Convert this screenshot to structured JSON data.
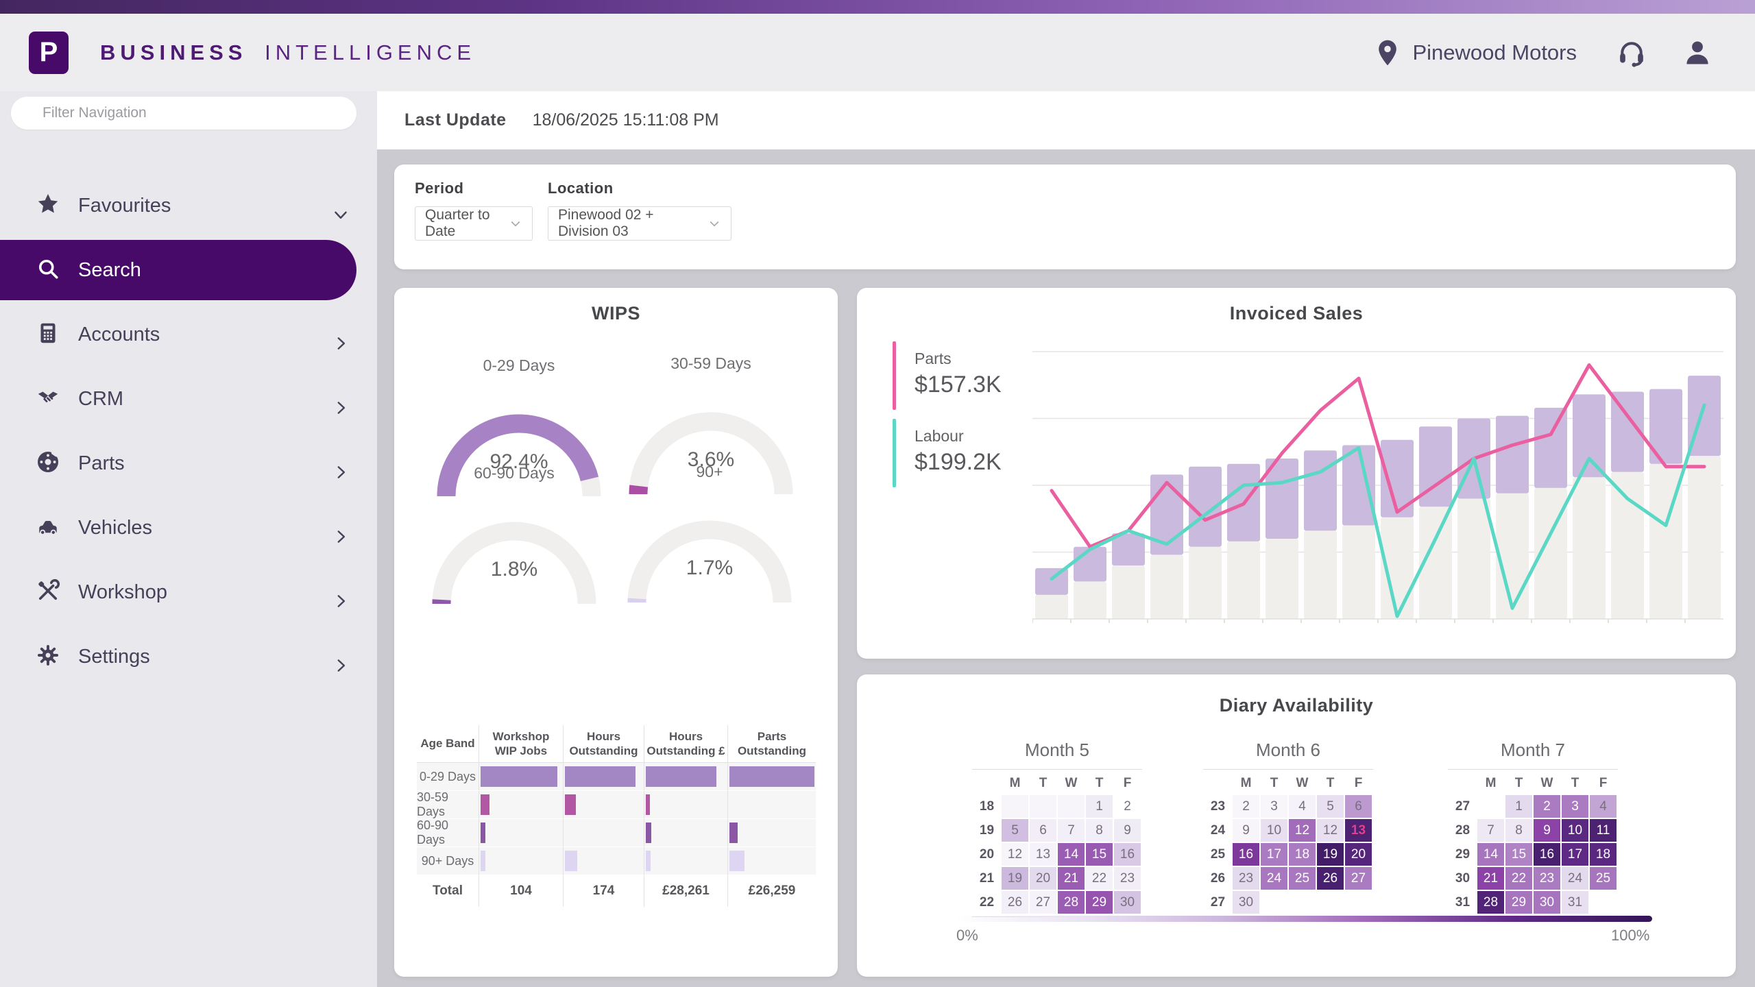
{
  "colors": {
    "brand_purple": "#470a68",
    "sidebar_text": "#474059",
    "page_bg": "#cbcad0",
    "pink": "#ea5f9f",
    "teal": "#5bd7c5",
    "bar_purple": "#cabadd",
    "bar_gray": "#f1efec",
    "gauge_track": "#f1efed",
    "calendar_dark": "#331557"
  },
  "header": {
    "logo_letter": "P",
    "brand_bold": "BUSINESS",
    "brand_light": "INTELLIGENCE",
    "dealer": "Pinewood Motors"
  },
  "sidebar": {
    "filter_placeholder": "Filter Navigation",
    "items": [
      {
        "label": "Favourites",
        "icon": "star",
        "chevron": "down",
        "active": false
      },
      {
        "label": "Search",
        "icon": "search",
        "chevron": "none",
        "active": true
      },
      {
        "label": "Accounts",
        "icon": "calculator",
        "chevron": "right",
        "active": false
      },
      {
        "label": "CRM",
        "icon": "handshake",
        "chevron": "right",
        "active": false
      },
      {
        "label": "Parts",
        "icon": "brake-disc",
        "chevron": "right",
        "active": false
      },
      {
        "label": "Vehicles",
        "icon": "car",
        "chevron": "right",
        "active": false
      },
      {
        "label": "Workshop",
        "icon": "tools",
        "chevron": "right",
        "active": false
      },
      {
        "label": "Settings",
        "icon": "gear",
        "chevron": "right",
        "active": false
      }
    ]
  },
  "status": {
    "label": "Last Update",
    "value": "18/06/2025 15:11:08 PM"
  },
  "filters": {
    "period": {
      "label": "Period",
      "value": "Quarter to Date"
    },
    "location": {
      "label": "Location",
      "value": "Pinewood 02 + Division 03"
    }
  },
  "wips": {
    "title": "WIPS",
    "gauges": [
      {
        "label": "0-29 Days",
        "display": "92.4%",
        "value": 92.4,
        "color": "#a782c5"
      },
      {
        "label": "30-59 Days",
        "display": "3.6%",
        "value": 3.6,
        "color": "#ab4fa5"
      },
      {
        "label": "60-90 Days",
        "display": "1.8%",
        "value": 1.8,
        "color": "#8f57ac"
      },
      {
        "label": "90+",
        "display": "1.7%",
        "value": 1.7,
        "color": "#d9d0f0"
      }
    ],
    "table": {
      "headers": [
        [
          "Age Band"
        ],
        [
          "Workshop",
          "WIP Jobs"
        ],
        [
          "Hours",
          "Outstanding"
        ],
        [
          "Hours",
          "Outstanding £"
        ],
        [
          "Parts",
          "Outstanding"
        ]
      ],
      "rows": [
        {
          "label": "0-29 Days",
          "color": "#a287c4",
          "bars": [
            92,
            88,
            85,
            97
          ]
        },
        {
          "label": "30-59 Days",
          "color": "#b157a3",
          "bars": [
            11,
            14,
            5,
            0
          ]
        },
        {
          "label": "60-90 Days",
          "color": "#8b57a5",
          "bars": [
            6,
            0,
            7,
            9
          ]
        },
        {
          "label": "90+ Days",
          "color": "#ded5f3",
          "bars": [
            6,
            15,
            6,
            17
          ]
        }
      ],
      "total": {
        "label": "Total",
        "values": [
          "104",
          "174",
          "£28,261",
          "£26,259"
        ]
      }
    }
  },
  "invoiced_sales": {
    "title": "Invoiced Sales",
    "legend": [
      {
        "name": "Parts",
        "value": "$157.3K",
        "color": "#ea5f9f"
      },
      {
        "name": "Labour",
        "value": "$199.2K",
        "color": "#5bd7c5"
      }
    ],
    "chart_data": {
      "type": "combo-bar-line",
      "x_count": 18,
      "axis_note": "no visible axis or tick labels; values are fractions of plot height (top gridline = 1.0)",
      "gridlines": 4,
      "bar_top_color": "#cabadd",
      "bar_base_color": "#f1efec",
      "bars_total": [
        0.19,
        0.27,
        0.32,
        0.54,
        0.57,
        0.58,
        0.6,
        0.63,
        0.65,
        0.67,
        0.72,
        0.75,
        0.76,
        0.79,
        0.84,
        0.85,
        0.86,
        0.91
      ],
      "bars_base": [
        0.09,
        0.14,
        0.2,
        0.24,
        0.27,
        0.29,
        0.3,
        0.33,
        0.35,
        0.38,
        0.42,
        0.45,
        0.47,
        0.49,
        0.53,
        0.55,
        0.58,
        0.61
      ],
      "series": [
        {
          "name": "Parts",
          "color": "#ea5f9f",
          "values": [
            0.48,
            0.27,
            0.33,
            0.51,
            0.37,
            0.43,
            0.62,
            0.78,
            0.9,
            0.4,
            0.5,
            0.6,
            0.65,
            0.69,
            0.95,
            0.76,
            0.57,
            0.57
          ]
        },
        {
          "name": "Labour",
          "color": "#5bd7c5",
          "values": [
            0.15,
            0.26,
            0.33,
            0.28,
            0.39,
            0.5,
            0.51,
            0.55,
            0.64,
            0.01,
            0.3,
            0.6,
            0.04,
            0.32,
            0.6,
            0.45,
            0.35,
            0.8
          ]
        }
      ]
    }
  },
  "diary": {
    "title": "Diary Availability",
    "day_headers": [
      "M",
      "T",
      "W",
      "T",
      "F"
    ],
    "scale": {
      "min": "0%",
      "max": "100%"
    },
    "months": [
      {
        "title": "Month 5",
        "weeks": [
          {
            "w": "18",
            "days": [
              {
                "d": "",
                "v": 0.05
              },
              {
                "d": "",
                "v": 0.05
              },
              {
                "d": "",
                "v": 0.05
              },
              {
                "d": "1",
                "v": 0.1
              },
              {
                "d": "2",
                "v": 0
              }
            ]
          },
          {
            "w": "19",
            "days": [
              {
                "d": "5",
                "v": 0.28
              },
              {
                "d": "6",
                "v": 0.09
              },
              {
                "d": "7",
                "v": 0.08
              },
              {
                "d": "8",
                "v": 0.08
              },
              {
                "d": "9",
                "v": 0.1
              }
            ]
          },
          {
            "w": "20",
            "days": [
              {
                "d": "12",
                "v": 0.05
              },
              {
                "d": "13",
                "v": 0.06
              },
              {
                "d": "14",
                "v": 0.55
              },
              {
                "d": "15",
                "v": 0.56
              },
              {
                "d": "16",
                "v": 0.24
              }
            ]
          },
          {
            "w": "21",
            "days": [
              {
                "d": "19",
                "v": 0.3
              },
              {
                "d": "20",
                "v": 0.18
              },
              {
                "d": "21",
                "v": 0.55
              },
              {
                "d": "22",
                "v": 0.07
              },
              {
                "d": "23",
                "v": 0.09
              }
            ]
          },
          {
            "w": "22",
            "days": [
              {
                "d": "26",
                "v": 0.08
              },
              {
                "d": "27",
                "v": 0.06
              },
              {
                "d": "28",
                "v": 0.55
              },
              {
                "d": "29",
                "v": 0.58
              },
              {
                "d": "30",
                "v": 0.26
              }
            ]
          }
        ]
      },
      {
        "title": "Month 6",
        "weeks": [
          {
            "w": "23",
            "days": [
              {
                "d": "2",
                "v": 0.04
              },
              {
                "d": "3",
                "v": 0.04
              },
              {
                "d": "4",
                "v": 0.06
              },
              {
                "d": "5",
                "v": 0.16
              },
              {
                "d": "6",
                "v": 0.38
              }
            ]
          },
          {
            "w": "24",
            "days": [
              {
                "d": "9",
                "v": 0.05
              },
              {
                "d": "10",
                "v": 0.16
              },
              {
                "d": "12",
                "v": 0.5
              },
              {
                "d": "12",
                "v": 0.16
              },
              {
                "d": "13",
                "v": 0.88,
                "pink": true
              }
            ]
          },
          {
            "w": "25",
            "days": [
              {
                "d": "16",
                "v": 0.7
              },
              {
                "d": "17",
                "v": 0.46
              },
              {
                "d": "18",
                "v": 0.46
              },
              {
                "d": "19",
                "v": 0.93
              },
              {
                "d": "20",
                "v": 0.84
              }
            ]
          },
          {
            "w": "26",
            "days": [
              {
                "d": "23",
                "v": 0.18
              },
              {
                "d": "24",
                "v": 0.47
              },
              {
                "d": "25",
                "v": 0.47
              },
              {
                "d": "26",
                "v": 0.9
              },
              {
                "d": "27",
                "v": 0.46
              }
            ]
          },
          {
            "w": "27",
            "days": [
              {
                "d": "30",
                "v": 0.16
              },
              {
                "d": "",
                "v": 0
              },
              {
                "d": "",
                "v": 0
              },
              {
                "d": "",
                "v": 0
              },
              {
                "d": "",
                "v": 0
              }
            ]
          }
        ]
      },
      {
        "title": "Month 7",
        "weeks": [
          {
            "w": "27",
            "days": [
              {
                "d": "",
                "v": 0
              },
              {
                "d": "1",
                "v": 0.18
              },
              {
                "d": "2",
                "v": 0.46
              },
              {
                "d": "3",
                "v": 0.46
              },
              {
                "d": "4",
                "v": 0.35
              }
            ]
          },
          {
            "w": "28",
            "days": [
              {
                "d": "7",
                "v": 0.12
              },
              {
                "d": "8",
                "v": 0.12
              },
              {
                "d": "9",
                "v": 0.64
              },
              {
                "d": "10",
                "v": 0.82
              },
              {
                "d": "11",
                "v": 0.88
              }
            ]
          },
          {
            "w": "29",
            "days": [
              {
                "d": "14",
                "v": 0.48
              },
              {
                "d": "15",
                "v": 0.44
              },
              {
                "d": "16",
                "v": 0.9
              },
              {
                "d": "17",
                "v": 0.8
              },
              {
                "d": "18",
                "v": 0.82
              }
            ]
          },
          {
            "w": "30",
            "days": [
              {
                "d": "21",
                "v": 0.64
              },
              {
                "d": "22",
                "v": 0.48
              },
              {
                "d": "23",
                "v": 0.46
              },
              {
                "d": "24",
                "v": 0.18
              },
              {
                "d": "25",
                "v": 0.48
              }
            ]
          },
          {
            "w": "31",
            "days": [
              {
                "d": "28",
                "v": 0.86
              },
              {
                "d": "29",
                "v": 0.48
              },
              {
                "d": "30",
                "v": 0.48
              },
              {
                "d": "31",
                "v": 0.16
              },
              {
                "d": "",
                "v": 0
              }
            ]
          }
        ]
      }
    ]
  }
}
